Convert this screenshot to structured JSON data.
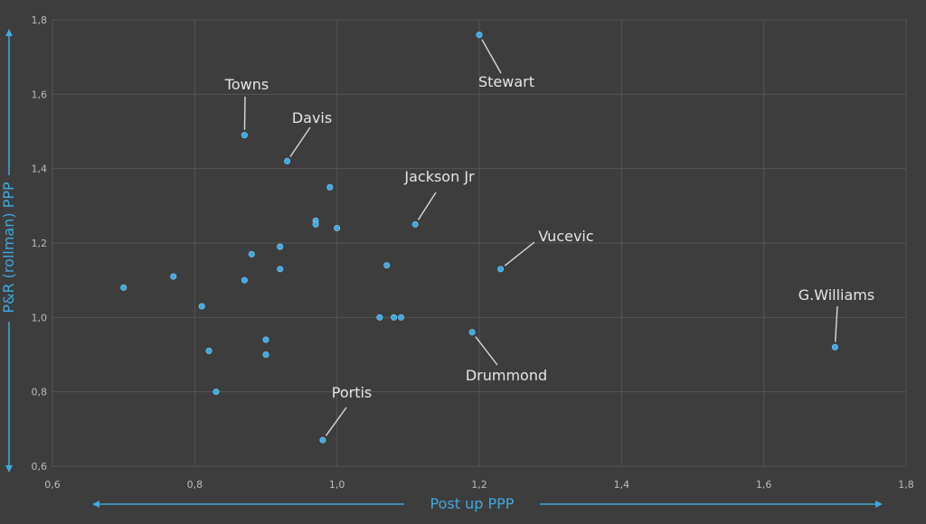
{
  "chart_data": {
    "type": "scatter",
    "xlabel": "Post up PPP",
    "ylabel": "P&R (rollman) PPP",
    "xlim": [
      0.6,
      1.8
    ],
    "ylim": [
      0.6,
      1.8
    ],
    "x_ticks": [
      "0,6",
      "0,8",
      "1,0",
      "1,2",
      "1,4",
      "1,6",
      "1,8"
    ],
    "y_ticks": [
      "0,6",
      "0,8",
      "1,0",
      "1,2",
      "1,4",
      "1,6",
      "1,8"
    ],
    "grid": true,
    "colors": {
      "background": "#3d3d3d",
      "grid": "#555555",
      "point": "#3fa9e0",
      "label": "#e6e6e6",
      "axis_title": "#3fa9e0",
      "tick": "#bdbdbd",
      "leader": "#d9d9d9"
    },
    "points": [
      {
        "x": 1.2,
        "y": 1.76,
        "label": "Stewart"
      },
      {
        "x": 0.87,
        "y": 1.49,
        "label": "Towns"
      },
      {
        "x": 0.93,
        "y": 1.42,
        "label": "Davis"
      },
      {
        "x": 0.99,
        "y": 1.35,
        "label": ""
      },
      {
        "x": 0.97,
        "y": 1.26,
        "label": ""
      },
      {
        "x": 0.97,
        "y": 1.25,
        "label": ""
      },
      {
        "x": 1.11,
        "y": 1.25,
        "label": "Jackson Jr"
      },
      {
        "x": 1.0,
        "y": 1.24,
        "label": ""
      },
      {
        "x": 0.92,
        "y": 1.19,
        "label": ""
      },
      {
        "x": 0.88,
        "y": 1.17,
        "label": ""
      },
      {
        "x": 1.07,
        "y": 1.14,
        "label": ""
      },
      {
        "x": 0.92,
        "y": 1.13,
        "label": ""
      },
      {
        "x": 1.23,
        "y": 1.13,
        "label": "Vucevic"
      },
      {
        "x": 0.77,
        "y": 1.11,
        "label": ""
      },
      {
        "x": 0.87,
        "y": 1.1,
        "label": ""
      },
      {
        "x": 0.7,
        "y": 1.08,
        "label": ""
      },
      {
        "x": 0.81,
        "y": 1.03,
        "label": ""
      },
      {
        "x": 1.06,
        "y": 1.0,
        "label": ""
      },
      {
        "x": 1.08,
        "y": 1.0,
        "label": ""
      },
      {
        "x": 1.09,
        "y": 1.0,
        "label": ""
      },
      {
        "x": 1.19,
        "y": 0.96,
        "label": "Drummond"
      },
      {
        "x": 0.9,
        "y": 0.94,
        "label": ""
      },
      {
        "x": 1.7,
        "y": 0.92,
        "label": "G.Williams"
      },
      {
        "x": 0.82,
        "y": 0.91,
        "label": ""
      },
      {
        "x": 0.9,
        "y": 0.9,
        "label": ""
      },
      {
        "x": 0.83,
        "y": 0.8,
        "label": ""
      },
      {
        "x": 0.98,
        "y": 0.67,
        "label": "Portis"
      }
    ]
  }
}
